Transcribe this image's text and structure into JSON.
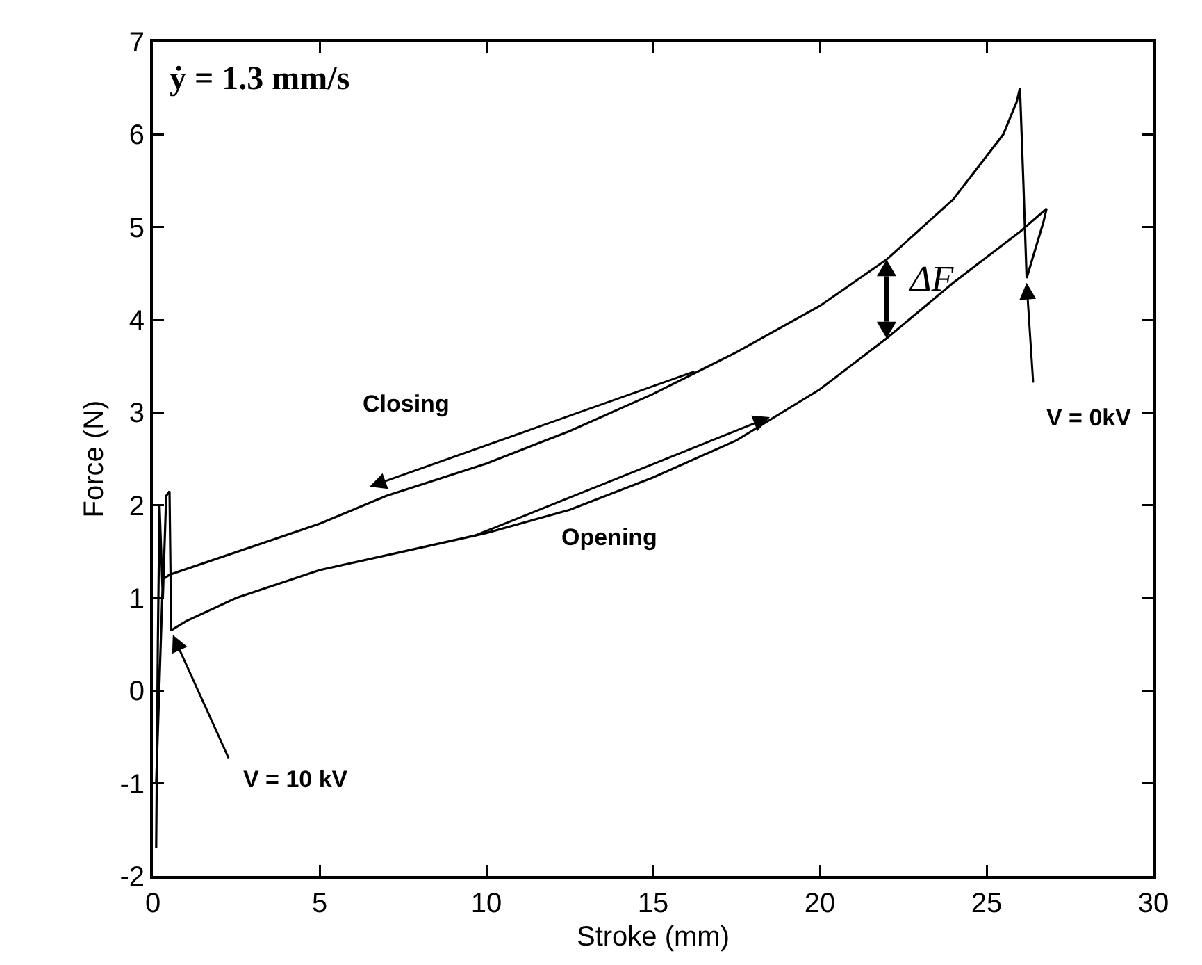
{
  "chart_data": {
    "type": "line",
    "xlabel": "Stroke (mm)",
    "ylabel": "Force (N)",
    "xlim": [
      0,
      30
    ],
    "xticks": [
      0,
      5,
      10,
      15,
      20,
      25,
      30
    ],
    "ylim": [
      -2,
      7
    ],
    "yticks": [
      -2,
      -1,
      0,
      1,
      2,
      3,
      4,
      5,
      6,
      7
    ],
    "marker": "none",
    "line_style": "solid",
    "series": [
      {
        "color": "#000000",
        "x": [
          0.1,
          0.15,
          0.2,
          0.3,
          0.4,
          0.5,
          0.55,
          1,
          2.5,
          5,
          7.5,
          10,
          12.5,
          15,
          17.5,
          20,
          22,
          24,
          26,
          26.8,
          26.7,
          26.2,
          26.1,
          26.0,
          25.9,
          25.5,
          24,
          22,
          20,
          17.5,
          15,
          12.5,
          10,
          7,
          5,
          0.5,
          0.3,
          0.1
        ],
        "values": [
          -1.7,
          0.5,
          2.0,
          1.0,
          2.1,
          2.15,
          0.65,
          0.75,
          1.0,
          1.3,
          1.5,
          1.7,
          1.95,
          2.3,
          2.7,
          3.25,
          3.8,
          4.4,
          4.95,
          5.2,
          5.05,
          4.45,
          5.5,
          6.5,
          6.35,
          6.0,
          5.3,
          4.65,
          4.15,
          3.65,
          3.2,
          2.8,
          2.45,
          2.1,
          1.8,
          1.25,
          1.2,
          -1.0
        ]
      }
    ],
    "annotations": [
      "ẏ = 1.3 mm/s",
      "Closing",
      "Opening",
      {
        "text": "V = 10 kV",
        "x": 0.6,
        "y": 0.6
      },
      {
        "text": "V = 0kV",
        "x": 26.2,
        "y": 4.4
      },
      {
        "text": "ΔF",
        "x": 22,
        "y": 3.8
      }
    ]
  }
}
